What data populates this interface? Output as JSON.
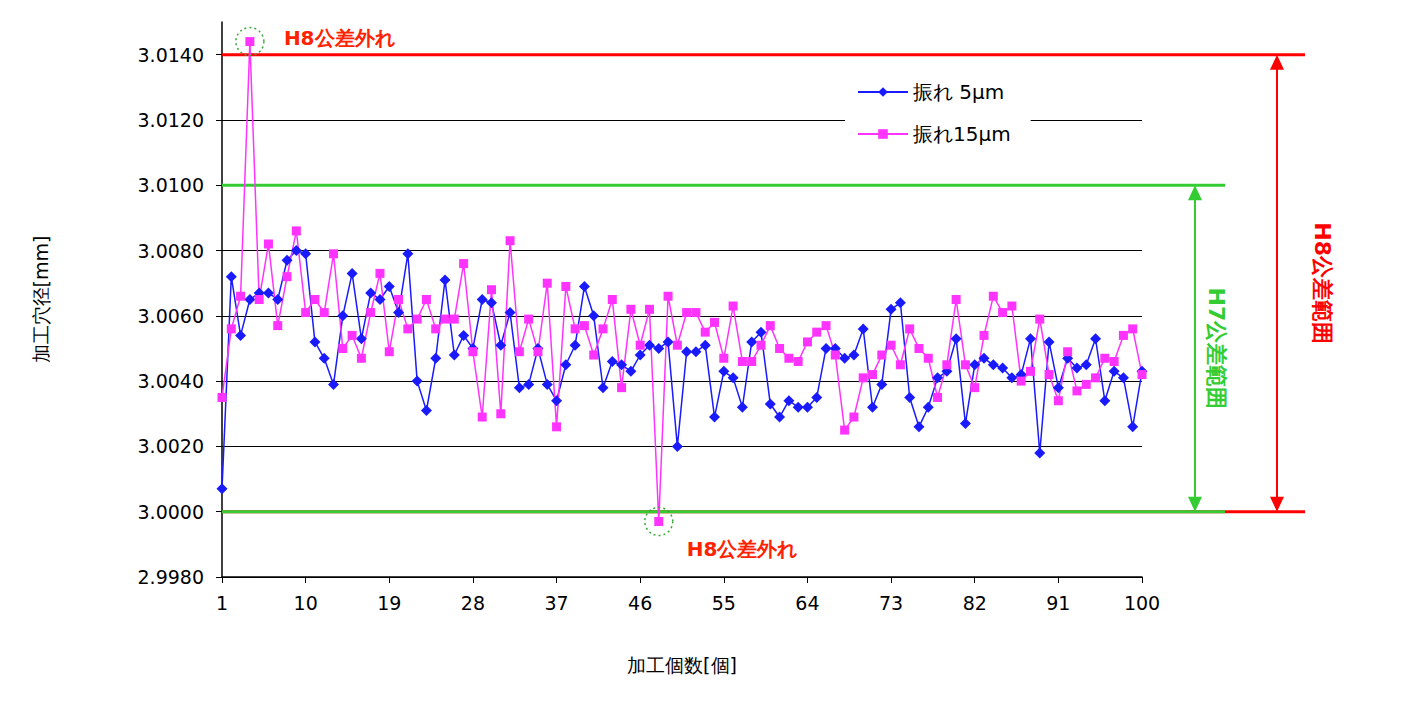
{
  "chart_data": {
    "type": "line",
    "xlabel": "加工個数[個]",
    "ylabel": "加工穴径[mm]",
    "x": [
      1,
      2,
      3,
      4,
      5,
      6,
      7,
      8,
      9,
      10,
      11,
      12,
      13,
      14,
      15,
      16,
      17,
      18,
      19,
      20,
      21,
      22,
      23,
      24,
      25,
      26,
      27,
      28,
      29,
      30,
      31,
      32,
      33,
      34,
      35,
      36,
      37,
      38,
      39,
      40,
      41,
      42,
      43,
      44,
      45,
      46,
      47,
      48,
      49,
      50,
      51,
      52,
      53,
      54,
      55,
      56,
      57,
      58,
      59,
      60,
      61,
      62,
      63,
      64,
      65,
      66,
      67,
      68,
      69,
      70,
      71,
      72,
      73,
      74,
      75,
      76,
      77,
      78,
      79,
      80,
      81,
      82,
      83,
      84,
      85,
      86,
      87,
      88,
      89,
      90,
      91,
      92,
      93,
      94,
      95,
      96,
      97,
      98,
      99,
      100
    ],
    "series": [
      {
        "name": "振れ 5μm",
        "color": "#1a1aff",
        "marker": "diamond",
        "line_style": "solid",
        "values": [
          3.0007,
          3.0072,
          3.0054,
          3.0065,
          3.0067,
          3.0067,
          3.0065,
          3.0077,
          3.008,
          3.0079,
          3.0052,
          3.0047,
          3.0039,
          3.006,
          3.0073,
          3.0053,
          3.0067,
          3.0065,
          3.0069,
          3.0061,
          3.0079,
          3.004,
          3.0031,
          3.0047,
          3.0071,
          3.0048,
          3.0054,
          3.005,
          3.0065,
          3.0064,
          3.0051,
          3.0061,
          3.0038,
          3.0039,
          3.005,
          3.0039,
          3.0034,
          3.0045,
          3.0051,
          3.0069,
          3.006,
          3.0038,
          3.0046,
          3.0045,
          3.0043,
          3.0048,
          3.0051,
          3.005,
          3.0052,
          3.002,
          3.0049,
          3.0049,
          3.0051,
          3.0029,
          3.0043,
          3.0041,
          3.0032,
          3.0052,
          3.0055,
          3.0033,
          3.0029,
          3.0034,
          3.0032,
          3.0032,
          3.0035,
          3.005,
          3.005,
          3.0047,
          3.0048,
          3.0056,
          3.0032,
          3.0039,
          3.0062,
          3.0064,
          3.0035,
          3.0026,
          3.0032,
          3.0041,
          3.0043,
          3.0053,
          3.0027,
          3.0045,
          3.0047,
          3.0045,
          3.0044,
          3.0041,
          3.0042,
          3.0053,
          3.0018,
          3.0052,
          3.0038,
          3.0047,
          3.0044,
          3.0045,
          3.0053,
          3.0034,
          3.0043,
          3.0041,
          3.0026,
          3.0043
        ]
      },
      {
        "name": "振れ15μm",
        "color": "#ff33ff",
        "marker": "square",
        "line_style": "solid",
        "values": [
          3.0035,
          3.0056,
          3.0066,
          3.0144,
          3.0065,
          3.0082,
          3.0057,
          3.0072,
          3.0086,
          3.0061,
          3.0065,
          3.0061,
          3.0079,
          3.005,
          3.0054,
          3.0047,
          3.0061,
          3.0073,
          3.0049,
          3.0065,
          3.0056,
          3.0059,
          3.0065,
          3.0056,
          3.0059,
          3.0059,
          3.0076,
          3.0049,
          3.0029,
          3.0068,
          3.003,
          3.0083,
          3.0049,
          3.0059,
          3.0049,
          3.007,
          3.0026,
          3.0069,
          3.0056,
          3.0057,
          3.0048,
          3.0056,
          3.0065,
          3.0038,
          3.0062,
          3.0051,
          3.0062,
          2.9997,
          3.0066,
          3.0051,
          3.0061,
          3.0061,
          3.0055,
          3.0058,
          3.0047,
          3.0063,
          3.0046,
          3.0046,
          3.0051,
          3.0057,
          3.005,
          3.0047,
          3.0046,
          3.0052,
          3.0055,
          3.0057,
          3.0048,
          3.0025,
          3.0029,
          3.0041,
          3.0042,
          3.0048,
          3.0051,
          3.0045,
          3.0056,
          3.005,
          3.0047,
          3.0035,
          3.0045,
          3.0065,
          3.0045,
          3.0038,
          3.0054,
          3.0066,
          3.0061,
          3.0063,
          3.004,
          3.0043,
          3.0059,
          3.0042,
          3.0034,
          3.0049,
          3.0037,
          3.0039,
          3.0041,
          3.0047,
          3.0046,
          3.0054,
          3.0056,
          3.0042
        ]
      }
    ],
    "xlim": [
      1,
      100
    ],
    "xticks": [
      1,
      10,
      19,
      28,
      37,
      46,
      55,
      64,
      73,
      82,
      91,
      100
    ],
    "ylim": [
      2.998,
      3.015
    ],
    "yticks": [
      {
        "value": 2.998,
        "label": "2.9980"
      },
      {
        "value": 3.0,
        "label": "3.0000"
      },
      {
        "value": 3.002,
        "label": "3.0020"
      },
      {
        "value": 3.004,
        "label": "3.0040"
      },
      {
        "value": 3.006,
        "label": "3.0060"
      },
      {
        "value": 3.008,
        "label": "3.0080"
      },
      {
        "value": 3.01,
        "label": "3.0100"
      },
      {
        "value": 3.012,
        "label": "3.0120"
      },
      {
        "value": 3.014,
        "label": "3.0140"
      }
    ],
    "grid": true,
    "legend": "upper right",
    "tolerance_bands": [
      {
        "label": "H8公差範囲",
        "lower": 3.0,
        "upper": 3.014,
        "color": "#ff0000"
      },
      {
        "label": "H7公差範囲",
        "lower": 3.0,
        "upper": 3.01,
        "color": "#33cc33"
      }
    ],
    "annotations": [
      {
        "text": "H8公差外れ",
        "series": "振れ15μm",
        "x": 4,
        "color": "#ff2200"
      },
      {
        "text": "H8公差外れ",
        "series": "振れ15μm",
        "x": 48,
        "color": "#ff2200"
      }
    ]
  }
}
